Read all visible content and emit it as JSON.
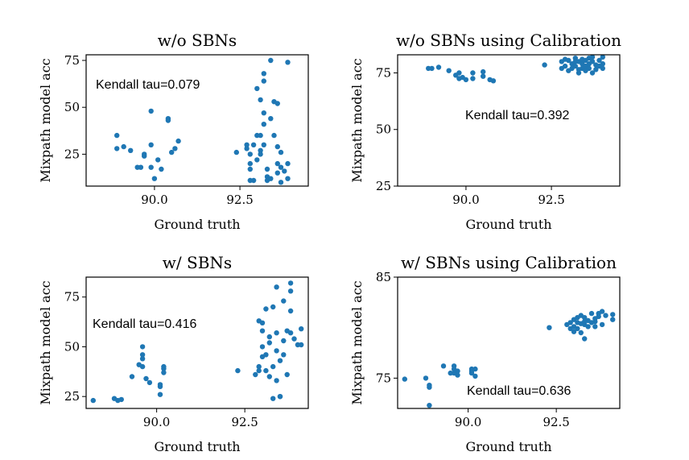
{
  "chart_data": [
    {
      "type": "scatter",
      "title": "w/o SBNs",
      "xlabel": "Ground truth",
      "ylabel": "Mixpath model acc",
      "xlim": [
        88.0,
        94.5
      ],
      "ylim": [
        8,
        78
      ],
      "xticks": [
        90.0,
        92.5
      ],
      "yticks": [
        25,
        50,
        75
      ],
      "xtick_labels": [
        "90.0",
        "92.5"
      ],
      "ytick_labels": [
        "25",
        "50",
        "75"
      ],
      "annotation": "Kendall tau=0.079",
      "points": [
        [
          88.9,
          35
        ],
        [
          88.9,
          28
        ],
        [
          89.1,
          29
        ],
        [
          89.3,
          27
        ],
        [
          89.5,
          18
        ],
        [
          89.6,
          18
        ],
        [
          89.7,
          24
        ],
        [
          89.7,
          25
        ],
        [
          89.9,
          48
        ],
        [
          89.9,
          30
        ],
        [
          89.9,
          18
        ],
        [
          90.1,
          22
        ],
        [
          90.2,
          17
        ],
        [
          90.0,
          12
        ],
        [
          90.4,
          44
        ],
        [
          90.4,
          43
        ],
        [
          90.5,
          26
        ],
        [
          90.6,
          28
        ],
        [
          90.7,
          32
        ],
        [
          92.4,
          26
        ],
        [
          92.7,
          30
        ],
        [
          92.7,
          28
        ],
        [
          92.8,
          25
        ],
        [
          92.8,
          20
        ],
        [
          92.8,
          17
        ],
        [
          92.8,
          11
        ],
        [
          92.9,
          11
        ],
        [
          92.9,
          30
        ],
        [
          93.0,
          35
        ],
        [
          93.0,
          22
        ],
        [
          93.1,
          27
        ],
        [
          93.1,
          25
        ],
        [
          93.0,
          60
        ],
        [
          93.1,
          54
        ],
        [
          93.2,
          64
        ],
        [
          93.2,
          68
        ],
        [
          93.2,
          47
        ],
        [
          93.2,
          41
        ],
        [
          93.2,
          30
        ],
        [
          93.3,
          17
        ],
        [
          93.3,
          13
        ],
        [
          93.3,
          11
        ],
        [
          93.1,
          35
        ],
        [
          93.4,
          75
        ],
        [
          93.4,
          44
        ],
        [
          93.5,
          53
        ],
        [
          93.5,
          35
        ],
        [
          93.6,
          29
        ],
        [
          93.6,
          52
        ],
        [
          93.7,
          26
        ],
        [
          93.6,
          20
        ],
        [
          93.7,
          18
        ],
        [
          93.8,
          16
        ],
        [
          93.6,
          15
        ],
        [
          93.7,
          10
        ],
        [
          93.9,
          74
        ],
        [
          93.9,
          20
        ],
        [
          93.9,
          12
        ],
        [
          93.4,
          12
        ]
      ]
    },
    {
      "type": "scatter",
      "title": "w/o SBNs using Calibration",
      "xlabel": "Ground truth",
      "ylabel": "Mixpath model acc",
      "xlim": [
        88.0,
        94.5
      ],
      "ylim": [
        25,
        83
      ],
      "xticks": [
        90.0,
        92.5
      ],
      "yticks": [
        25,
        50,
        75
      ],
      "xtick_labels": [
        "90.0",
        "92.5"
      ],
      "ytick_labels": [
        "25",
        "50",
        "75"
      ],
      "annotation": "Kendall tau=0.392",
      "points": [
        [
          88.9,
          77
        ],
        [
          89.0,
          77
        ],
        [
          89.2,
          77.5
        ],
        [
          89.5,
          76
        ],
        [
          89.7,
          74
        ],
        [
          89.8,
          75
        ],
        [
          89.8,
          72.5
        ],
        [
          89.9,
          73
        ],
        [
          90.0,
          72
        ],
        [
          90.2,
          72.5
        ],
        [
          90.2,
          75
        ],
        [
          90.5,
          73.5
        ],
        [
          90.5,
          75.5
        ],
        [
          90.7,
          72
        ],
        [
          90.8,
          71.5
        ],
        [
          92.3,
          78.5
        ],
        [
          92.8,
          80
        ],
        [
          92.8,
          77
        ],
        [
          92.9,
          81
        ],
        [
          92.9,
          78
        ],
        [
          93.0,
          76
        ],
        [
          93.0,
          80.5
        ],
        [
          93.1,
          79
        ],
        [
          93.1,
          77
        ],
        [
          93.2,
          81.5
        ],
        [
          93.2,
          80
        ],
        [
          93.2,
          78
        ],
        [
          93.3,
          75
        ],
        [
          93.3,
          76.5
        ],
        [
          93.3,
          80
        ],
        [
          93.4,
          79
        ],
        [
          93.4,
          81
        ],
        [
          93.4,
          77
        ],
        [
          93.5,
          78
        ],
        [
          93.5,
          80.5
        ],
        [
          93.5,
          76
        ],
        [
          93.6,
          81.5
        ],
        [
          93.6,
          79
        ],
        [
          93.6,
          77
        ],
        [
          93.7,
          80
        ],
        [
          93.7,
          82
        ],
        [
          93.7,
          75
        ],
        [
          93.8,
          78.5
        ],
        [
          93.8,
          76.5
        ],
        [
          93.9,
          80.5
        ],
        [
          93.9,
          78
        ],
        [
          94.0,
          82
        ],
        [
          94.0,
          79
        ],
        [
          94.0,
          77
        ]
      ]
    },
    {
      "type": "scatter",
      "title": "w/ SBNs",
      "xlabel": "Ground truth",
      "ylabel": "Mixpath model acc",
      "xlim": [
        88.0,
        94.3
      ],
      "ylim": [
        19,
        85
      ],
      "xticks": [
        90.0,
        92.5
      ],
      "yticks": [
        25,
        50,
        75
      ],
      "xtick_labels": [
        "90.0",
        "92.5"
      ],
      "ytick_labels": [
        "25",
        "50",
        "75"
      ],
      "annotation": "Kendall tau=0.416",
      "points": [
        [
          88.2,
          23
        ],
        [
          88.8,
          24
        ],
        [
          88.9,
          23
        ],
        [
          89.0,
          23.5
        ],
        [
          89.3,
          35
        ],
        [
          89.5,
          41
        ],
        [
          89.6,
          46
        ],
        [
          89.6,
          50
        ],
        [
          89.6,
          44
        ],
        [
          89.6,
          40
        ],
        [
          89.7,
          34
        ],
        [
          89.8,
          32
        ],
        [
          90.1,
          26
        ],
        [
          90.1,
          30
        ],
        [
          90.1,
          31
        ],
        [
          90.2,
          40
        ],
        [
          90.2,
          39
        ],
        [
          90.2,
          37
        ],
        [
          92.3,
          38
        ],
        [
          92.8,
          36
        ],
        [
          92.9,
          63
        ],
        [
          92.9,
          40
        ],
        [
          92.9,
          38
        ],
        [
          93.0,
          58
        ],
        [
          93.0,
          50
        ],
        [
          93.0,
          45
        ],
        [
          93.0,
          62
        ],
        [
          93.1,
          69
        ],
        [
          93.1,
          46
        ],
        [
          93.1,
          38
        ],
        [
          93.2,
          55
        ],
        [
          93.2,
          52
        ],
        [
          93.2,
          35
        ],
        [
          93.3,
          24
        ],
        [
          93.3,
          70
        ],
        [
          93.3,
          40
        ],
        [
          93.4,
          80
        ],
        [
          93.4,
          57
        ],
        [
          93.4,
          48
        ],
        [
          93.5,
          25
        ],
        [
          93.5,
          43
        ],
        [
          93.6,
          46
        ],
        [
          93.6,
          73
        ],
        [
          93.6,
          53
        ],
        [
          93.7,
          58
        ],
        [
          93.7,
          36
        ],
        [
          93.8,
          82
        ],
        [
          93.8,
          78
        ],
        [
          93.8,
          68
        ],
        [
          93.8,
          57
        ],
        [
          93.9,
          54
        ],
        [
          94.0,
          51
        ],
        [
          94.1,
          59
        ],
        [
          94.1,
          51
        ],
        [
          93.4,
          33
        ],
        [
          93.5,
          25
        ]
      ]
    },
    {
      "type": "scatter",
      "title": "w/ SBNs using Calibration",
      "xlabel": "Ground truth",
      "ylabel": "Mixpath model acc",
      "xlim": [
        88.0,
        94.3
      ],
      "ylim": [
        72,
        85
      ],
      "xticks": [
        90.0,
        92.5
      ],
      "yticks": [
        75,
        85
      ],
      "xtick_labels": [
        "90.0",
        "92.5"
      ],
      "ytick_labels": [
        "75",
        "85"
      ],
      "annotation": "Kendall tau=0.636",
      "points": [
        [
          88.2,
          74.9
        ],
        [
          88.8,
          75
        ],
        [
          88.9,
          74.3
        ],
        [
          88.9,
          74.1
        ],
        [
          88.9,
          72.3
        ],
        [
          89.3,
          76.2
        ],
        [
          89.5,
          75.5
        ],
        [
          89.6,
          76.2
        ],
        [
          89.6,
          75.9
        ],
        [
          89.6,
          75.5
        ],
        [
          89.7,
          75.3
        ],
        [
          89.7,
          75.7
        ],
        [
          90.1,
          75.9
        ],
        [
          90.1,
          75.7
        ],
        [
          90.1,
          75.5
        ],
        [
          90.2,
          75.9
        ],
        [
          90.2,
          75.2
        ],
        [
          92.3,
          80
        ],
        [
          92.8,
          80.3
        ],
        [
          92.9,
          79.9
        ],
        [
          92.9,
          80.5
        ],
        [
          93.0,
          79.6
        ],
        [
          93.0,
          80.8
        ],
        [
          93.0,
          80.1
        ],
        [
          93.1,
          80.5
        ],
        [
          93.1,
          81
        ],
        [
          93.1,
          79.9
        ],
        [
          93.2,
          80.4
        ],
        [
          93.2,
          81.2
        ],
        [
          93.2,
          79.5
        ],
        [
          93.3,
          80.3
        ],
        [
          93.3,
          78.9
        ],
        [
          93.3,
          81
        ],
        [
          93.4,
          80.1
        ],
        [
          93.4,
          80.7
        ],
        [
          93.5,
          81.4
        ],
        [
          93.5,
          80.5
        ],
        [
          93.6,
          80.9
        ],
        [
          93.6,
          80.1
        ],
        [
          93.7,
          81.4
        ],
        [
          93.7,
          81.1
        ],
        [
          93.8,
          80.3
        ],
        [
          93.8,
          81.6
        ],
        [
          93.9,
          81.2
        ],
        [
          94.1,
          81.3
        ],
        [
          94.1,
          80.8
        ],
        [
          93.6,
          80.6
        ],
        [
          93.3,
          80.6
        ]
      ]
    }
  ]
}
